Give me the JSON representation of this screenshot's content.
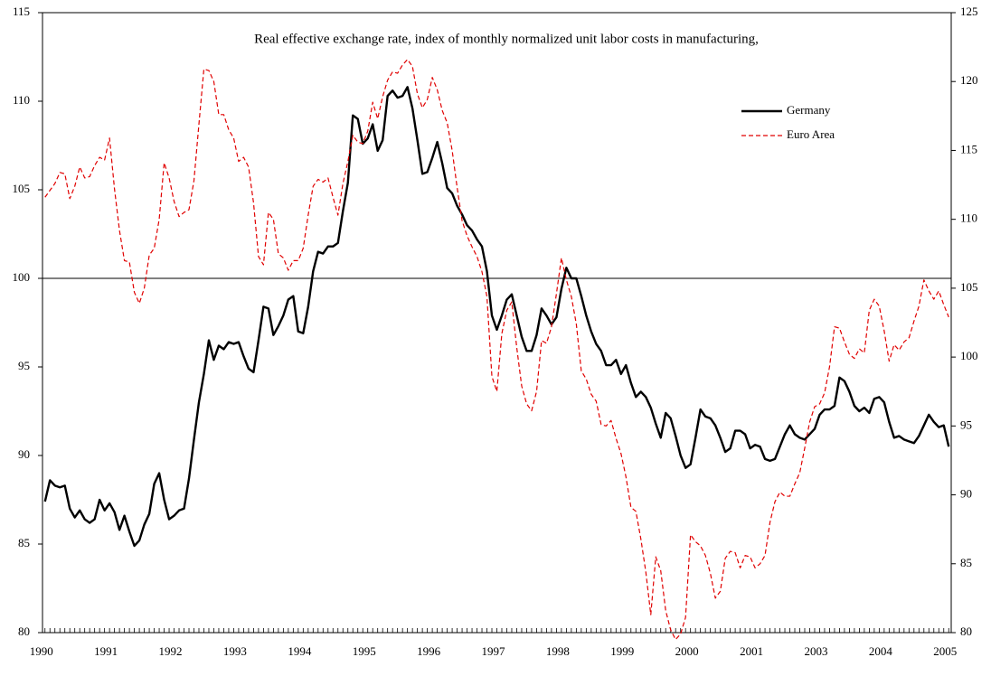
{
  "chart_data": {
    "type": "line",
    "title": "Real effective exchange rate, index of monthly normalized unit labor costs in manufacturing,",
    "categories": [
      "1990",
      null,
      null,
      null,
      null,
      null,
      null,
      null,
      null,
      null,
      null,
      null,
      null,
      "1991",
      null,
      null,
      null,
      null,
      null,
      null,
      null,
      null,
      null,
      null,
      null,
      null,
      "1992",
      null,
      null,
      null,
      null,
      null,
      null,
      null,
      null,
      null,
      null,
      null,
      null,
      "1993",
      null,
      null,
      null,
      null,
      null,
      null,
      null,
      null,
      null,
      null,
      null,
      null,
      "1994",
      null,
      null,
      null,
      null,
      null,
      null,
      null,
      null,
      null,
      null,
      null,
      null,
      "1995",
      null,
      null,
      null,
      null,
      null,
      null,
      null,
      null,
      null,
      null,
      null,
      null,
      "1996",
      null,
      null,
      null,
      null,
      null,
      null,
      null,
      null,
      null,
      null,
      null,
      null,
      "1997",
      null,
      null,
      null,
      null,
      null,
      null,
      null,
      null,
      null,
      null,
      null,
      null,
      "1998",
      null,
      null,
      null,
      null,
      null,
      null,
      null,
      null,
      null,
      null,
      null,
      null,
      "1999",
      null,
      null,
      null,
      null,
      null,
      null,
      null,
      null,
      null,
      null,
      null,
      null,
      "2000",
      null,
      null,
      null,
      null,
      null,
      null,
      null,
      null,
      null,
      null,
      null,
      null,
      "2001",
      null,
      null,
      null,
      null,
      null,
      null,
      null,
      null,
      null,
      null,
      null,
      null,
      "2003",
      null,
      null,
      null,
      null,
      null,
      null,
      null,
      null,
      null,
      null,
      null,
      null,
      "2004",
      null,
      null,
      null,
      null,
      null,
      null,
      null,
      null,
      null,
      null,
      null,
      null,
      "2005"
    ],
    "series": [
      {
        "name": "Germany",
        "color": "#000000",
        "axis": "y",
        "dashed": false,
        "values": [
          87.4,
          88.6,
          88.3,
          88.2,
          88.3,
          87.0,
          86.5,
          86.9,
          86.4,
          86.2,
          86.4,
          87.5,
          86.9,
          87.3,
          86.8,
          85.8,
          86.6,
          85.7,
          84.9,
          85.2,
          86.1,
          86.7,
          88.4,
          89.0,
          87.5,
          86.4,
          86.6,
          86.9,
          87.0,
          88.7,
          90.9,
          93.0,
          94.6,
          96.5,
          95.4,
          96.2,
          96.0,
          96.4,
          96.3,
          96.4,
          95.6,
          94.9,
          94.7,
          96.5,
          98.4,
          98.3,
          96.8,
          97.3,
          97.9,
          98.8,
          99.0,
          97.0,
          96.9,
          98.4,
          100.4,
          101.5,
          101.4,
          101.8,
          101.8,
          102.0,
          103.8,
          105.4,
          109.2,
          109.0,
          107.6,
          107.9,
          108.7,
          107.2,
          107.8,
          110.3,
          110.6,
          110.2,
          110.3,
          110.8,
          109.6,
          107.8,
          105.9,
          106.0,
          106.8,
          107.7,
          106.5,
          105.1,
          104.8,
          104.1,
          103.6,
          103.0,
          102.7,
          102.2,
          101.8,
          100.4,
          97.9,
          97.1,
          97.9,
          98.8,
          99.1,
          97.9,
          96.7,
          95.9,
          95.9,
          96.8,
          98.3,
          97.9,
          97.4,
          97.8,
          99.4,
          100.6,
          100.0,
          100.0,
          99.0,
          97.9,
          97.0,
          96.3,
          95.9,
          95.1,
          95.1,
          95.4,
          94.6,
          95.1,
          94.1,
          93.3,
          93.6,
          93.3,
          92.7,
          91.8,
          91.0,
          92.4,
          92.1,
          91.1,
          90.0,
          89.3,
          89.5,
          91.0,
          92.6,
          92.2,
          92.1,
          91.7,
          91.0,
          90.2,
          90.4,
          91.4,
          91.4,
          91.2,
          90.4,
          90.6,
          90.5,
          89.8,
          89.7,
          89.8,
          90.5,
          91.2,
          91.7,
          91.2,
          91.0,
          90.9,
          91.2,
          91.5,
          92.3,
          92.6,
          92.6,
          92.8,
          94.4,
          94.2,
          93.6,
          92.8,
          92.5,
          92.7,
          92.4,
          93.2,
          93.3,
          93.0,
          91.9,
          91.0,
          91.1,
          90.9,
          90.8,
          90.7,
          91.1,
          91.7,
          92.3,
          91.9,
          91.6,
          91.7,
          90.5
        ]
      },
      {
        "name": "Euro Area",
        "color": "#e00000",
        "axis": "y2",
        "dashed": true,
        "values": [
          111.6,
          112.1,
          112.6,
          113.4,
          113.3,
          111.5,
          112.4,
          113.8,
          113.0,
          113.1,
          113.9,
          114.5,
          114.3,
          115.9,
          112.2,
          109.2,
          107.0,
          106.9,
          104.7,
          103.9,
          105.0,
          107.4,
          107.9,
          110.0,
          114.1,
          113.0,
          111.3,
          110.2,
          110.5,
          110.7,
          112.8,
          116.9,
          120.9,
          120.8,
          120.0,
          117.6,
          117.6,
          116.5,
          115.9,
          114.2,
          114.5,
          113.8,
          111.2,
          107.3,
          106.7,
          110.5,
          110.0,
          107.5,
          107.2,
          106.3,
          107.0,
          107.0,
          107.9,
          110.3,
          112.4,
          112.9,
          112.7,
          113.0,
          111.6,
          110.3,
          112.6,
          114.2,
          116.1,
          115.6,
          115.5,
          116.4,
          118.5,
          117.3,
          118.9,
          120.1,
          120.7,
          120.6,
          121.2,
          121.6,
          121.1,
          119.1,
          118.1,
          118.7,
          120.3,
          119.4,
          117.9,
          117.0,
          115.0,
          112.3,
          109.9,
          108.8,
          108.0,
          107.3,
          106.2,
          104.4,
          98.6,
          97.5,
          101.7,
          103.4,
          104.0,
          100.7,
          97.9,
          96.6,
          96.1,
          97.5,
          101.2,
          101.0,
          102.2,
          104.6,
          107.2,
          105.6,
          104.4,
          102.4,
          99.0,
          98.4,
          97.3,
          96.8,
          95.1,
          95.0,
          95.4,
          94.1,
          93.0,
          91.3,
          89.1,
          88.8,
          86.8,
          84.4,
          81.3,
          85.5,
          84.5,
          81.6,
          80.2,
          79.5,
          79.9,
          81.1,
          87.1,
          86.6,
          86.3,
          85.6,
          84.3,
          82.5,
          83.0,
          85.4,
          85.9,
          85.8,
          84.7,
          85.6,
          85.5,
          84.7,
          85.0,
          85.6,
          88.0,
          89.5,
          90.2,
          89.9,
          89.9,
          90.8,
          91.6,
          93.4,
          95.3,
          96.4,
          96.6,
          97.4,
          99.3,
          102.2,
          102.1,
          101.1,
          100.2,
          99.9,
          100.6,
          100.3,
          103.4,
          104.2,
          103.7,
          101.9,
          99.7,
          100.9,
          100.5,
          101.1,
          101.4,
          102.6,
          103.7,
          105.6,
          104.8,
          104.2,
          104.8,
          103.8,
          102.9
        ]
      }
    ],
    "ylim": [
      80,
      115
    ],
    "yticks": [
      80,
      85,
      90,
      95,
      100,
      105,
      110,
      115
    ],
    "y2lim": [
      80,
      125
    ],
    "y2ticks": [
      80,
      85,
      90,
      95,
      100,
      105,
      110,
      115,
      120,
      125
    ],
    "hline": 100,
    "grid": false,
    "legend": "upper right"
  }
}
